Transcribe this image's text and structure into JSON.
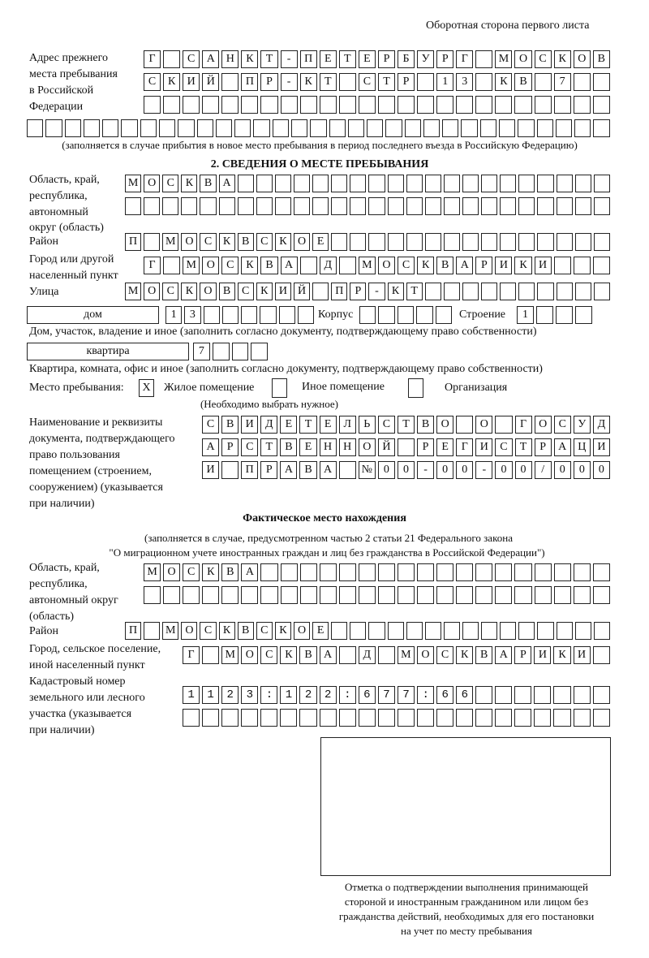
{
  "page_header": "Оборотная сторона первого листа",
  "previous_address": {
    "label": [
      "Адрес прежнего",
      "места пребывания",
      "в Российской",
      "Федерации"
    ],
    "rows": [
      "Г САНКТ-ПЕТЕРБУРГ МОСКОВ",
      "СКИЙ ПР-КТ СТР 13 КВ 7",
      "",
      ""
    ],
    "note": "(заполняется в случае прибытия в новое место пребывания в период последнего въезда в Российскую Федерацию)"
  },
  "section2": {
    "title": "2. СВЕДЕНИЯ О МЕСТЕ ПРЕБЫВАНИЯ",
    "region_label": [
      "Область, край,",
      "республика,",
      "автономный",
      "округ (область)"
    ],
    "region_rows": [
      "МОСКВА",
      ""
    ],
    "district_label": "Район",
    "district_row": "П МОСКВСКОЕ",
    "city_label": [
      "Город или другой",
      "населенный пункт"
    ],
    "city_row": "Г МОСКВА Д МОСКВАРИКИ",
    "street_label": "Улица",
    "street_row": "МОСКОВСКИЙ ПР-КТ",
    "house_type": "дом",
    "house_row": "13",
    "korpus_label": "Корпус",
    "korpus_row": "",
    "building_label": "Строение",
    "building_row": "1",
    "house_note": "Дом, участок, владение и иное (заполнить согласно документу, подтверждающему право собственности)",
    "apartment_type": "квартира",
    "apartment_row": "7",
    "apartment_note": "Квартира, комната, офис и иное (заполнить согласно документу, подтверждающему право собственности)",
    "stay_place_label": "Место пребывания:",
    "options": [
      {
        "label": "Жилое помещение",
        "mark": "X"
      },
      {
        "label": "Иное помещение",
        "mark": ""
      },
      {
        "label": "Организация",
        "mark": ""
      }
    ],
    "choose_note": "(Необходимо выбрать нужное)",
    "doc_label": [
      "Наименование и реквизиты",
      "документа, подтверждающего",
      "право пользования",
      "помещением (строением,",
      "сооружением) (указывается",
      "при наличии)"
    ],
    "doc_rows": [
      "СВИДЕТЕЛЬСТВО О ГОСУД",
      "АРСТВЕННОЙ РЕГИСТРАЦИ",
      "И ПРАВА №00-00-00/000"
    ]
  },
  "actual_location": {
    "title": "Фактическое место нахождения",
    "subtitle": [
      "(заполняется в случае, предусмотренном частью 2 статьи 21 Федерального закона",
      "\"О миграционном учете иностранных граждан и лиц без гражданства в Российской Федерации\")"
    ],
    "region_label": [
      "Область, край,",
      "республика,",
      "автономный округ",
      "(область)"
    ],
    "region_rows": [
      "МОСКВА",
      ""
    ],
    "district_label": "Район",
    "district_row": "П МОСКВСКОЕ",
    "city_label": [
      "Город, сельское поселение,",
      "иной населенный пункт"
    ],
    "city_row": "Г МОСКВА Д МОСКВАРИКИ",
    "cadastral_label": [
      "Кадастровый номер",
      "земельного или лесного",
      "участка (указывается",
      "при наличии)"
    ],
    "cadastral_rows": [
      "1123:122:677:66",
      ""
    ]
  },
  "confirmation": {
    "caption": [
      "Отметка о подтверждении выполнения принимающей",
      "стороной и иностранным гражданином или лицом без",
      "гражданства действий, необходимых для его постановки",
      "на учет по месту пребывания"
    ]
  }
}
